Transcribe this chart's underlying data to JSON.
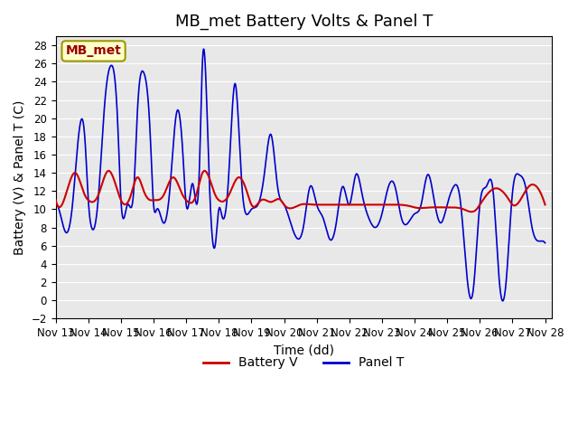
{
  "title": "MB_met Battery Volts & Panel T",
  "xlabel": "Time (dd)",
  "ylabel": "Battery (V) & Panel T (C)",
  "ylim": [
    -2,
    29
  ],
  "yticks": [
    -2,
    0,
    2,
    4,
    6,
    8,
    10,
    12,
    14,
    16,
    18,
    20,
    22,
    24,
    26,
    28
  ],
  "xlim_start": 13.0,
  "xlim_end": 28.2,
  "xtick_labels": [
    "Nov 13",
    "Nov 14",
    "Nov 15",
    "Nov 16",
    "Nov 17",
    "Nov 18",
    "Nov 19",
    "Nov 20",
    "Nov 21",
    "Nov 22",
    "Nov 23",
    "Nov 24",
    "Nov 25",
    "Nov 26",
    "Nov 27",
    "Nov 28"
  ],
  "xtick_positions": [
    13,
    14,
    15,
    16,
    17,
    18,
    19,
    20,
    21,
    22,
    23,
    24,
    25,
    26,
    27,
    28
  ],
  "battery_color": "#cc0000",
  "panel_color": "#0000cc",
  "legend_battery": "Battery V",
  "legend_panel": "Panel T",
  "label_box_text": "MB_met",
  "label_box_facecolor": "#ffffcc",
  "label_box_edgecolor": "#999900",
  "label_box_textcolor": "#990000",
  "background_color": "#e8e8e8",
  "grid_color": "#ffffff",
  "title_fontsize": 13,
  "axis_fontsize": 10,
  "tick_fontsize": 8.5
}
